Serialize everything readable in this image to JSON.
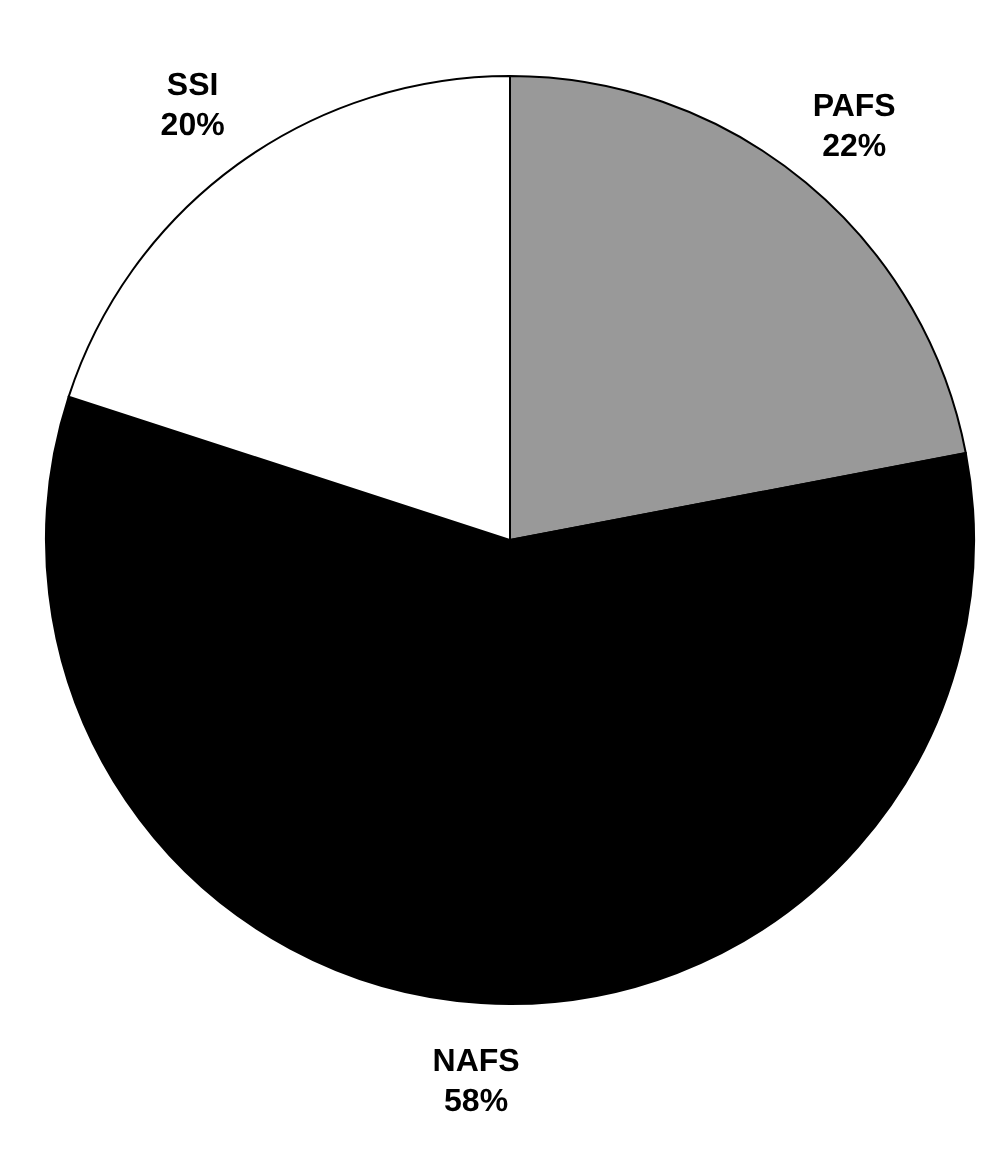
{
  "chart_data": {
    "type": "pie",
    "categories": [
      "PAFS",
      "NAFS",
      "SSI"
    ],
    "values": [
      22,
      58,
      20
    ],
    "colors": [
      "#999999",
      "#000000",
      "#ffffff"
    ],
    "value_labels": [
      "22%",
      "58%",
      "20%"
    ]
  }
}
